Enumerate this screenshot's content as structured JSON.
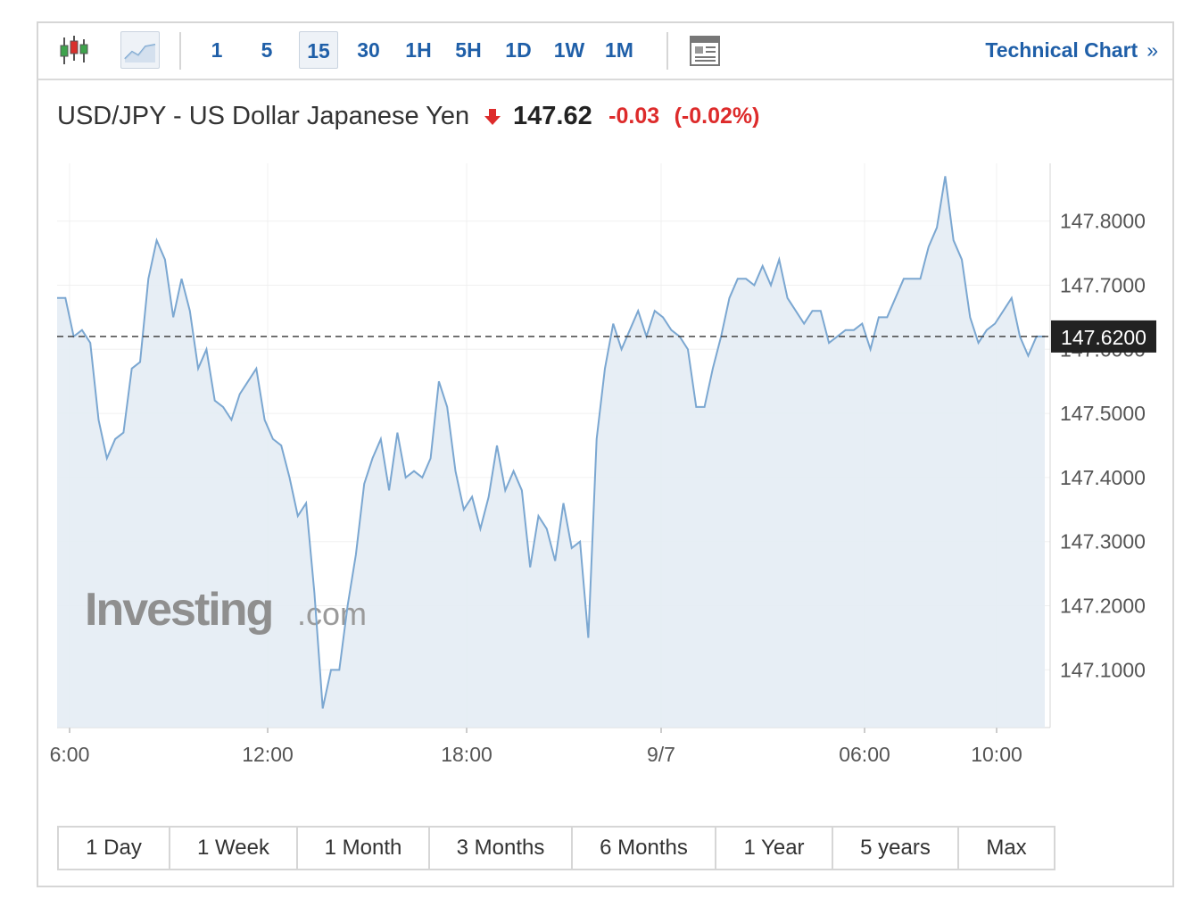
{
  "toolbar": {
    "candlestick_icon": "candlestick-icon",
    "line_icon": "area-line-icon",
    "intervals": [
      "1",
      "5",
      "15",
      "30",
      "1H",
      "5H",
      "1D",
      "1W",
      "1M"
    ],
    "active_interval": "15",
    "news_icon": "news-list-icon",
    "technical_chart_label": "Technical Chart",
    "technical_chart_chevron": "»"
  },
  "header": {
    "symbol_name": "USD/JPY - US Dollar Japanese Yen",
    "direction_icon": "down-arrow-icon",
    "last_price": "147.62",
    "change": "-0.03",
    "change_pct": "(-0.02%)"
  },
  "colors": {
    "accent": "#1f5fa8",
    "negative": "#dd2b2b",
    "line": "#7ba7d1",
    "area": "#e4ecf4"
  },
  "watermark": {
    "text": "Investing",
    "suffix": ".com"
  },
  "ranges": [
    "1 Day",
    "1 Week",
    "1 Month",
    "3 Months",
    "6 Months",
    "1 Year",
    "5 years",
    "Max"
  ],
  "chart_data": {
    "type": "area",
    "title": "USD/JPY - US Dollar Japanese Yen",
    "xlabel": "",
    "ylabel": "",
    "x_ticks": [
      "6:00",
      "12:00",
      "18:00",
      "9/7",
      "06:00",
      "10:00"
    ],
    "y_ticks": [
      "147.8000",
      "147.7000",
      "147.6000",
      "147.5000",
      "147.4000",
      "147.3000",
      "147.2000",
      "147.1000"
    ],
    "ylim": [
      147.01,
      147.89
    ],
    "last_value_label": "147.6200",
    "last_value": 147.62,
    "grid": true,
    "values": [
      147.68,
      147.68,
      147.62,
      147.63,
      147.61,
      147.49,
      147.43,
      147.46,
      147.47,
      147.57,
      147.58,
      147.71,
      147.77,
      147.74,
      147.65,
      147.71,
      147.66,
      147.57,
      147.6,
      147.52,
      147.51,
      147.49,
      147.53,
      147.55,
      147.57,
      147.49,
      147.46,
      147.45,
      147.4,
      147.34,
      147.36,
      147.22,
      147.04,
      147.1,
      147.1,
      147.2,
      147.28,
      147.39,
      147.43,
      147.46,
      147.38,
      147.47,
      147.4,
      147.41,
      147.4,
      147.43,
      147.55,
      147.51,
      147.41,
      147.35,
      147.37,
      147.32,
      147.37,
      147.45,
      147.38,
      147.41,
      147.38,
      147.26,
      147.34,
      147.32,
      147.27,
      147.36,
      147.29,
      147.3,
      147.15,
      147.46,
      147.57,
      147.64,
      147.6,
      147.63,
      147.66,
      147.62,
      147.66,
      147.65,
      147.63,
      147.62,
      147.6,
      147.51,
      147.51,
      147.57,
      147.62,
      147.68,
      147.71,
      147.71,
      147.7,
      147.73,
      147.7,
      147.74,
      147.68,
      147.66,
      147.64,
      147.66,
      147.66,
      147.61,
      147.62,
      147.63,
      147.63,
      147.64,
      147.6,
      147.65,
      147.65,
      147.68,
      147.71,
      147.71,
      147.71,
      147.76,
      147.79,
      147.87,
      147.77,
      147.74,
      147.65,
      147.61,
      147.63,
      147.64,
      147.66,
      147.68,
      147.62,
      147.59,
      147.62,
      147.62
    ]
  }
}
